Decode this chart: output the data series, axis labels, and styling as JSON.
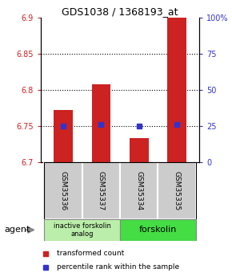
{
  "title": "GDS1038 / 1368193_at",
  "samples": [
    "GSM35336",
    "GSM35337",
    "GSM35334",
    "GSM35335"
  ],
  "bar_values": [
    6.772,
    6.808,
    6.733,
    6.9
  ],
  "bar_base": 6.7,
  "percentile_values": [
    6.75,
    6.752,
    6.75,
    6.752
  ],
  "ylim": [
    6.7,
    6.9
  ],
  "yticks_left": [
    6.7,
    6.75,
    6.8,
    6.85,
    6.9
  ],
  "yticks_right": [
    0,
    25,
    50,
    75,
    100
  ],
  "ytick_labels_left": [
    "6.7",
    "6.75",
    "6.8",
    "6.85",
    "6.9"
  ],
  "ytick_labels_right": [
    "0",
    "25",
    "50",
    "75",
    "100%"
  ],
  "bar_color": "#cc2222",
  "percentile_color": "#3333cc",
  "agent_label": "agent",
  "group1_label": "inactive forskolin\nanalog",
  "group2_label": "forskolin",
  "group1_color": "#bbeeaa",
  "group2_color": "#44dd44",
  "legend_red_label": "transformed count",
  "legend_blue_label": "percentile rank within the sample",
  "bar_width": 0.5,
  "x_positions": [
    0,
    1,
    2,
    3
  ]
}
